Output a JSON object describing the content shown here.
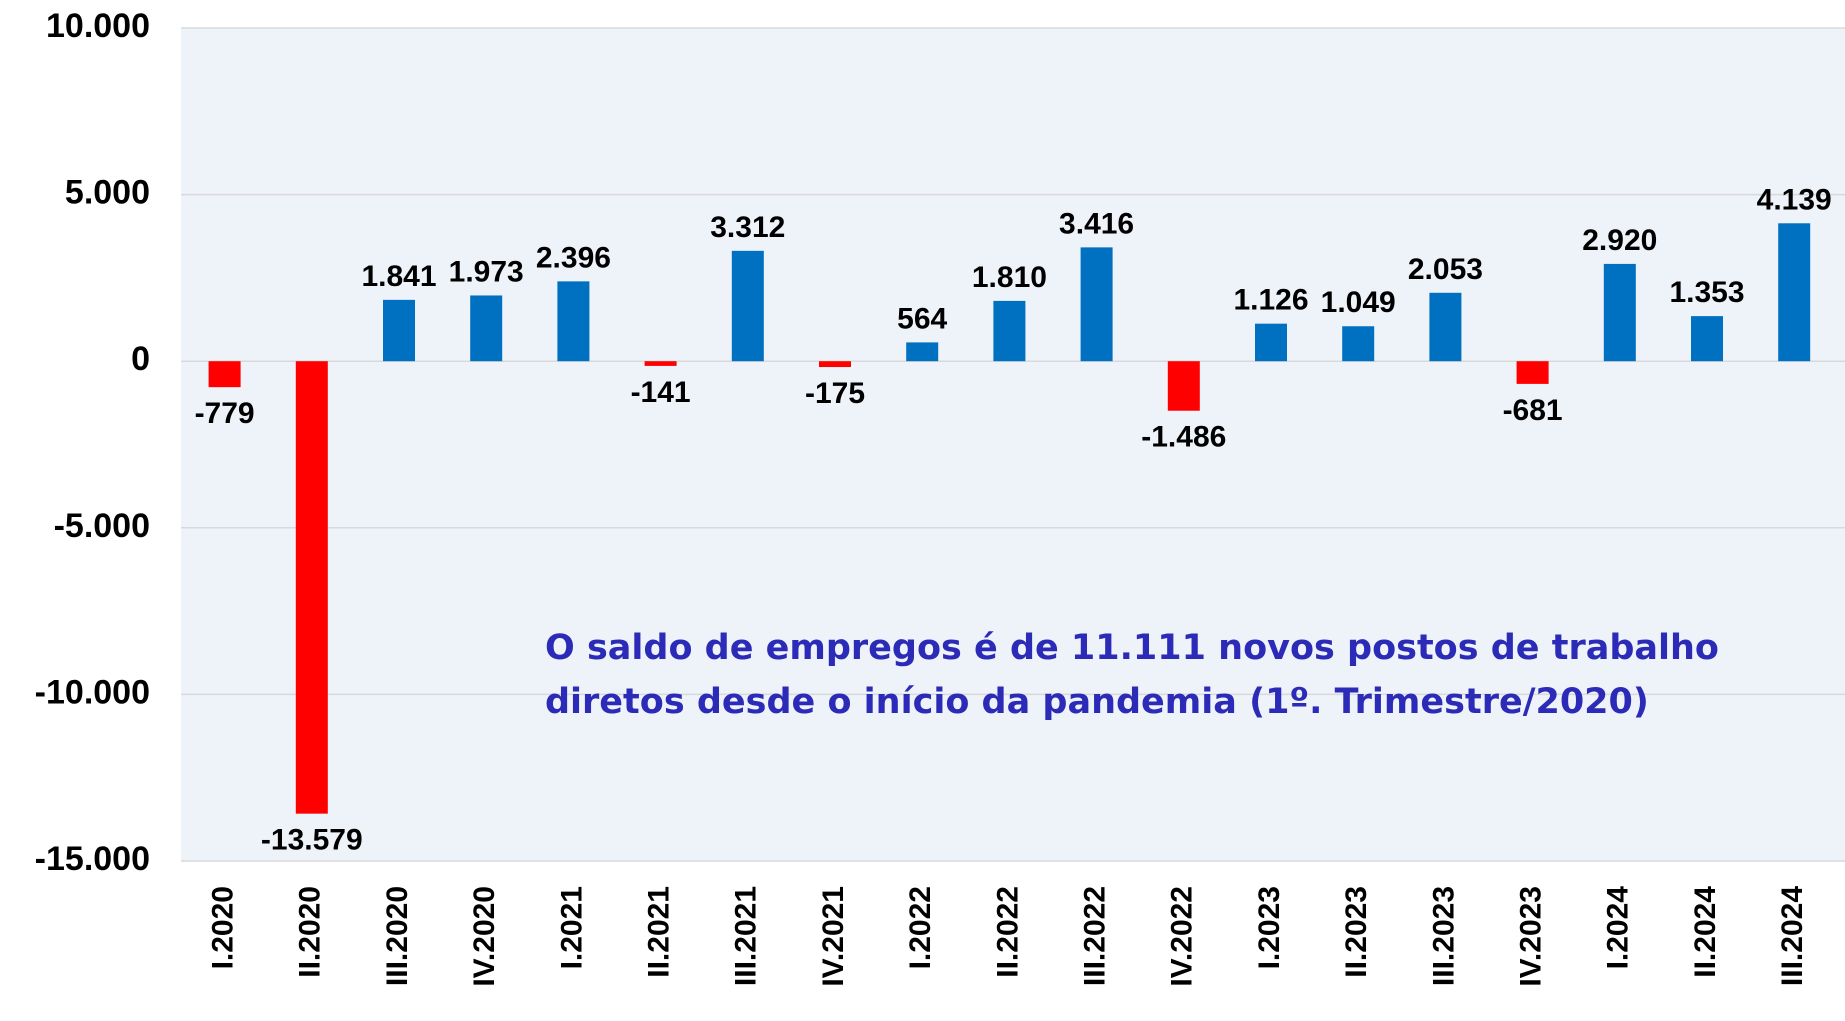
{
  "chart_data": {
    "type": "bar",
    "categories": [
      "I.2020",
      "II.2020",
      "III.2020",
      "IV.2020",
      "I.2021",
      "II.2021",
      "III.2021",
      "IV.2021",
      "I.2022",
      "II.2022",
      "III.2022",
      "IV.2022",
      "I.2023",
      "II.2023",
      "III.2023",
      "IV.2023",
      "I.2024",
      "II.2024",
      "III.2024"
    ],
    "values": [
      -779,
      -13579,
      1841,
      1973,
      2396,
      -141,
      3312,
      -175,
      564,
      1810,
      3416,
      -1486,
      1126,
      1049,
      2053,
      -681,
      2920,
      1353,
      4139
    ],
    "value_labels": [
      "-779",
      "-13.579",
      "1.841",
      "1.973",
      "2.396",
      "-141",
      "3.312",
      "-175",
      "564",
      "1.810",
      "3.416",
      "-1.486",
      "1.126",
      "1.049",
      "2.053",
      "-681",
      "2.920",
      "1.353",
      "4.139"
    ],
    "colors": {
      "positive": "#0070C0",
      "negative": "#FF0000"
    },
    "ylim": [
      -15000,
      10000
    ],
    "yticks": [
      {
        "value": -15000,
        "label": "-15.000"
      },
      {
        "value": -10000,
        "label": "-10.000"
      },
      {
        "value": -5000,
        "label": "-5.000"
      },
      0,
      {
        "value": 5000,
        "label": "5.000"
      },
      {
        "value": 10000,
        "label": "10.000"
      }
    ],
    "grid": true,
    "annotation": [
      "O saldo de empregos é de 11.111 novos postos de trabalho",
      "diretos desde o início da pandemia (1º. Trimestre/2020)"
    ]
  }
}
